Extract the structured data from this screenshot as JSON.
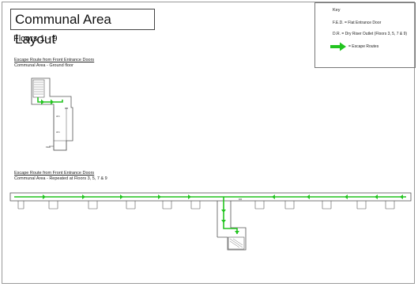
{
  "title": "Communal Area Layout",
  "subtitle": "Floors 1 - 9",
  "key": {
    "title": "Key",
    "fed": "F.E.D. = Flat Entrance Door",
    "dr": "D.R. = Dry Riser Outlet (Floors 3, 5, 7 & 9)",
    "escape": "= Escape Routes"
  },
  "ground": {
    "caption_title": "Escape Route from Front Entrance Doors",
    "caption_sub": "Communal Area - Ground floor"
  },
  "upper": {
    "caption_title": "Escape Route from Front Entrance Doors",
    "caption_sub": "Communal Area - Repeated at Floors 3, 5, 7 & 9"
  },
  "colors": {
    "escape_route": "#22c41f",
    "walls": "#555555"
  }
}
